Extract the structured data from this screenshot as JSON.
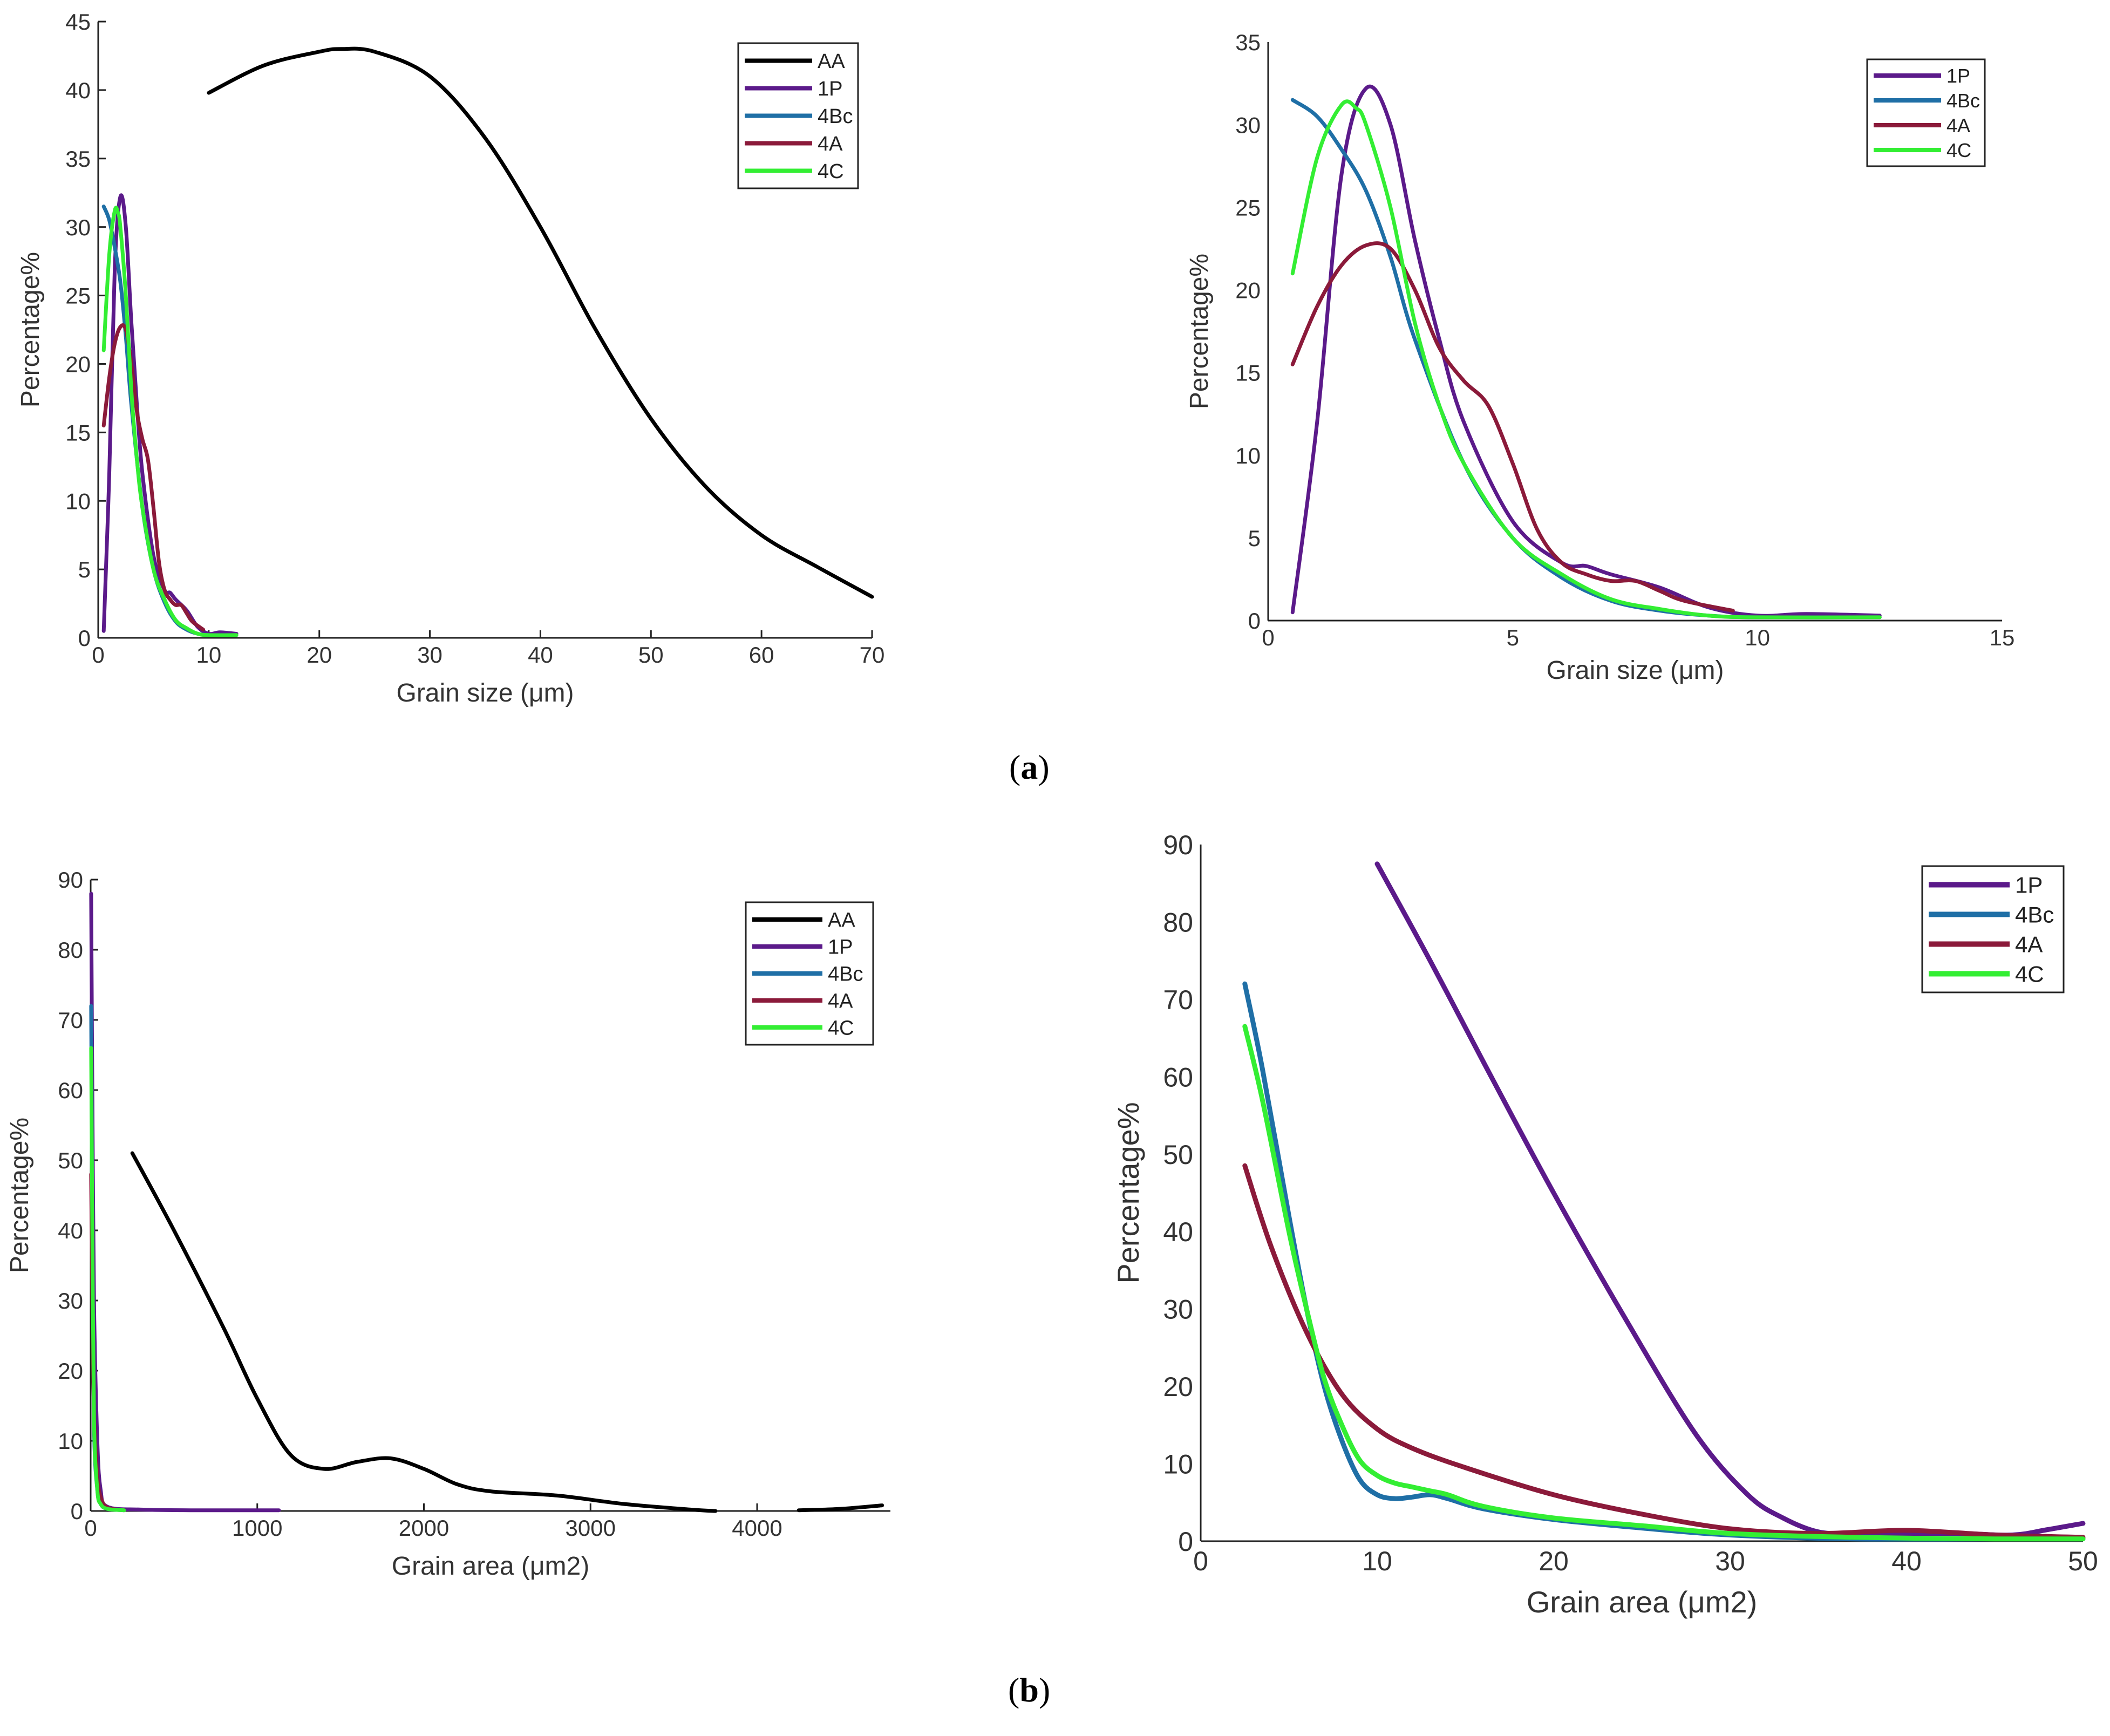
{
  "figure": {
    "label_a": {
      "open": "(",
      "letter": "a",
      "close": ")"
    },
    "label_b": {
      "open": "(",
      "letter": "b",
      "close": ")"
    }
  },
  "colors": {
    "AA": "#000000",
    "1P": "#5b1a8a",
    "4Bc": "#1f6fa6",
    "4A": "#8b1a3a",
    "4C": "#33ee33"
  },
  "chart_data": [
    {
      "id": "a_left",
      "type": "line",
      "title": "",
      "xlabel": "Grain size (μm)",
      "ylabel": "Percentage%",
      "xlim": [
        0,
        70
      ],
      "ylim": [
        0,
        45
      ],
      "xticks": [
        0,
        10,
        20,
        30,
        40,
        50,
        60,
        70
      ],
      "yticks": [
        0,
        5,
        10,
        15,
        20,
        25,
        30,
        35,
        40,
        45
      ],
      "legend": [
        "AA",
        "1P",
        "4Bc",
        "4A",
        "4C"
      ],
      "legend_position": "top-right",
      "series": [
        {
          "name": "AA",
          "x": [
            10,
            15,
            20,
            22,
            25,
            30,
            35,
            40,
            45,
            50,
            55,
            60,
            65,
            70
          ],
          "y": [
            39.8,
            41.8,
            42.8,
            43,
            42.8,
            41,
            36.5,
            30,
            22.5,
            16,
            11,
            7.5,
            5.2,
            3
          ]
        },
        {
          "name": "1P",
          "x": [
            0.5,
            1,
            1.5,
            2,
            2.5,
            3,
            3.5,
            4,
            5,
            6,
            6.5,
            7,
            8,
            9,
            10,
            11,
            12.5
          ],
          "y": [
            0.5,
            12,
            27,
            32.2,
            30,
            23,
            17,
            12,
            6,
            3.5,
            3.3,
            2.8,
            2,
            0.8,
            0.3,
            0.4,
            0.3
          ]
        },
        {
          "name": "4Bc",
          "x": [
            0.5,
            1,
            1.5,
            2,
            2.5,
            3,
            4,
            5,
            6,
            7,
            8,
            9,
            10,
            12.5
          ],
          "y": [
            31.5,
            30.5,
            28.5,
            26,
            22,
            17,
            9.5,
            5,
            2.6,
            1.2,
            0.6,
            0.3,
            0.2,
            0.2
          ]
        },
        {
          "name": "4A",
          "x": [
            0.5,
            1,
            1.5,
            2,
            2.5,
            3,
            3.5,
            4,
            4.5,
            5,
            5.5,
            6,
            6.5,
            7,
            7.5,
            8,
            8.5,
            9.5
          ],
          "y": [
            15.5,
            19,
            21.5,
            22.7,
            22.5,
            20,
            16.5,
            14.5,
            13,
            9.5,
            5.5,
            3.5,
            2.8,
            2.4,
            2.4,
            1.8,
            1.2,
            0.6
          ]
        },
        {
          "name": "4C",
          "x": [
            0.5,
            1,
            1.5,
            1.8,
            2,
            2.5,
            3,
            3.5,
            4,
            5,
            6,
            7,
            8,
            9,
            10,
            12.5
          ],
          "y": [
            21,
            28,
            31.2,
            31,
            30,
            25,
            18,
            13,
            9.5,
            5,
            2.8,
            1.3,
            0.7,
            0.3,
            0.2,
            0.2
          ]
        }
      ]
    },
    {
      "id": "a_right",
      "type": "line",
      "title": "",
      "xlabel": "Grain size (μm)",
      "ylabel": "Percentage%",
      "xlim": [
        0,
        15
      ],
      "ylim": [
        0,
        35
      ],
      "xticks": [
        0,
        5,
        10,
        15
      ],
      "yticks": [
        0,
        5,
        10,
        15,
        20,
        25,
        30,
        35
      ],
      "legend": [
        "1P",
        "4Bc",
        "4A",
        "4C"
      ],
      "legend_position": "top-right",
      "series": [
        {
          "name": "1P",
          "x": [
            0.5,
            1,
            1.5,
            2,
            2.5,
            3,
            3.5,
            4,
            5,
            6,
            6.5,
            7,
            8,
            9,
            10,
            11,
            12.5
          ],
          "y": [
            0.5,
            12,
            27,
            32.2,
            30,
            23,
            17,
            12,
            6,
            3.5,
            3.3,
            2.8,
            2,
            0.8,
            0.3,
            0.4,
            0.3
          ]
        },
        {
          "name": "4Bc",
          "x": [
            0.5,
            1,
            1.5,
            2,
            2.5,
            3,
            4,
            5,
            6,
            7,
            8,
            9,
            10,
            12.5
          ],
          "y": [
            31.5,
            30.5,
            28.5,
            26,
            22,
            17,
            9.5,
            5,
            2.6,
            1.2,
            0.6,
            0.3,
            0.2,
            0.2
          ]
        },
        {
          "name": "4A",
          "x": [
            0.5,
            1,
            1.5,
            2,
            2.5,
            3,
            3.5,
            4,
            4.5,
            5,
            5.5,
            6,
            6.5,
            7,
            7.5,
            8,
            8.5,
            9.5
          ],
          "y": [
            15.5,
            19,
            21.5,
            22.7,
            22.5,
            20,
            16.5,
            14.5,
            13,
            9.5,
            5.5,
            3.5,
            2.8,
            2.4,
            2.4,
            1.8,
            1.2,
            0.6
          ]
        },
        {
          "name": "4C",
          "x": [
            0.5,
            1,
            1.5,
            1.8,
            2,
            2.5,
            3,
            3.5,
            4,
            5,
            6,
            7,
            8,
            9,
            10,
            12.5
          ],
          "y": [
            21,
            28,
            31.2,
            31,
            30,
            25,
            18,
            13,
            9.5,
            5,
            2.8,
            1.3,
            0.7,
            0.3,
            0.2,
            0.2
          ]
        }
      ]
    },
    {
      "id": "b_left",
      "type": "line",
      "title": "",
      "xlabel": "Grain area (μm2)",
      "ylabel": "Percentage%",
      "xlim": [
        0,
        4800
      ],
      "ylim": [
        0,
        90
      ],
      "xticks": [
        0,
        1000,
        2000,
        3000,
        4000
      ],
      "yticks": [
        0,
        10,
        20,
        30,
        40,
        50,
        60,
        70,
        80,
        90
      ],
      "legend": [
        "AA",
        "1P",
        "4Bc",
        "4A",
        "4C"
      ],
      "legend_position": "top-right",
      "series": [
        {
          "name": "AA",
          "x": [
            250,
            500,
            800,
            1000,
            1200,
            1400,
            1600,
            1800,
            2000,
            2200,
            2400,
            2800,
            3200,
            3600,
            3750,
            null,
            4250,
            4500,
            4750
          ],
          "y": [
            51,
            40,
            26,
            16,
            8,
            6,
            7,
            7.5,
            6,
            3.8,
            2.8,
            2.2,
            1,
            0.2,
            0,
            null,
            0.1,
            0.3,
            0.8
          ]
        },
        {
          "name": "1P",
          "x": [
            3,
            10,
            20,
            40,
            60,
            100,
            300,
            600,
            1000,
            1130
          ],
          "y": [
            88,
            60,
            30,
            10,
            3,
            0.6,
            0.2,
            0.1,
            0.1,
            0.1
          ]
        },
        {
          "name": "4Bc",
          "x": [
            3,
            10,
            20,
            40,
            60,
            100,
            200
          ],
          "y": [
            72,
            40,
            12,
            3,
            1,
            0.3,
            0.1
          ]
        },
        {
          "name": "4A",
          "x": [
            3,
            10,
            20,
            40,
            60,
            100,
            200
          ],
          "y": [
            48,
            30,
            14,
            5,
            2,
            0.5,
            0.1
          ]
        },
        {
          "name": "4C",
          "x": [
            3,
            10,
            20,
            40,
            60,
            100,
            200
          ],
          "y": [
            66,
            40,
            13,
            3,
            1,
            0.3,
            0.1
          ]
        }
      ]
    },
    {
      "id": "b_right",
      "type": "line",
      "title": "",
      "xlabel": "Grain area (μm2)",
      "ylabel": "Percentage%",
      "xlim": [
        0,
        50
      ],
      "ylim": [
        0,
        90
      ],
      "xticks": [
        0,
        10,
        20,
        30,
        40,
        50
      ],
      "yticks": [
        0,
        10,
        20,
        30,
        40,
        50,
        60,
        70,
        80,
        90
      ],
      "legend": [
        "1P",
        "4Bc",
        "4A",
        "4C"
      ],
      "legend_position": "top-right",
      "series": [
        {
          "name": "1P",
          "x": [
            10,
            13,
            16,
            20,
            24,
            28,
            31,
            33,
            35,
            37,
            40,
            43,
            46,
            48,
            50
          ],
          "y": [
            87.5,
            75,
            62,
            45,
            29,
            14,
            6,
            3,
            1.2,
            1,
            1,
            1,
            0.8,
            1.5,
            2.3
          ]
        },
        {
          "name": "4Bc",
          "x": [
            2.5,
            3.5,
            5,
            6,
            7,
            8,
            9,
            10,
            11,
            12,
            13,
            14,
            16,
            20,
            25,
            30,
            37,
            45,
            50
          ],
          "y": [
            72,
            61,
            42,
            30,
            20,
            13,
            8,
            6,
            5.5,
            5.7,
            6,
            5.5,
            4.2,
            2.8,
            1.7,
            0.8,
            0.3,
            0.3,
            0.3
          ]
        },
        {
          "name": "4A",
          "x": [
            2.5,
            4,
            6,
            8,
            10,
            12,
            15,
            20,
            25,
            30,
            35,
            40,
            45,
            50
          ],
          "y": [
            48.5,
            38,
            27,
            19,
            14.5,
            12,
            9.5,
            6,
            3.5,
            1.6,
            1,
            1.4,
            0.8,
            0.5
          ]
        },
        {
          "name": "4C",
          "x": [
            2.5,
            3.5,
            5,
            6,
            7,
            8,
            9,
            10,
            11,
            12,
            13,
            14,
            16,
            20,
            25,
            30,
            37,
            45,
            50
          ],
          "y": [
            66.5,
            57,
            40,
            30,
            21,
            15,
            10.5,
            8.5,
            7.5,
            7,
            6.5,
            6,
            4.5,
            3,
            2,
            1,
            0.5,
            0.3,
            0.3
          ]
        }
      ]
    }
  ]
}
